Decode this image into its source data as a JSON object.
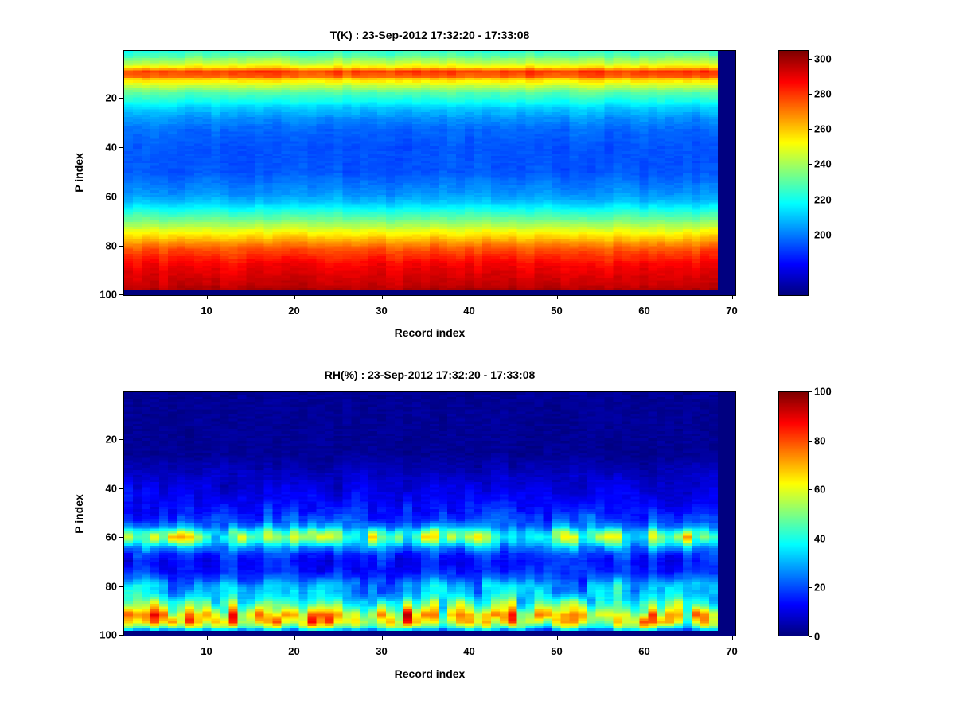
{
  "figure": {
    "background": "#ffffff",
    "colormap_name": "jet",
    "navy_min_color": "#00008f",
    "dark_red_max_color": "#7f0000"
  },
  "chart_data": [
    {
      "type": "heatmap",
      "title": "T(K) : 23-Sep-2012 17:32:20 - 17:33:08",
      "xlabel": "Record index",
      "ylabel": "P index",
      "grid": {
        "cols": 70,
        "rows": 100
      },
      "x_axis": {
        "min": 1,
        "max": 70,
        "ticks": [
          10,
          20,
          30,
          40,
          50,
          60,
          70
        ]
      },
      "y_axis": {
        "min": 1,
        "max": 100,
        "ticks": [
          20,
          40,
          60,
          80,
          100
        ],
        "reversed": true
      },
      "colorbar": {
        "colormap": "jet",
        "min": 165,
        "max": 305,
        "ticks": [
          200,
          220,
          240,
          260,
          280,
          300
        ]
      },
      "profile_p": [
        1,
        3,
        5,
        7,
        9,
        11,
        12,
        14,
        16,
        18,
        21,
        24,
        28,
        33,
        40,
        50,
        55,
        60,
        63,
        66,
        69,
        72,
        75,
        78,
        81,
        84,
        88,
        92,
        96,
        98
      ],
      "profile_value": [
        224,
        232,
        242,
        254,
        280,
        274,
        260,
        249,
        238,
        229,
        221,
        211,
        203,
        197,
        194,
        194,
        199,
        204,
        211,
        221,
        231,
        241,
        253,
        263,
        274,
        281,
        288,
        292,
        295,
        298
      ],
      "noise": {
        "mode": "additive",
        "amp_p": [
          1,
          9,
          14,
          30,
          60,
          80,
          100
        ],
        "amp_v": [
          5,
          9,
          5,
          3.5,
          4,
          5,
          5
        ],
        "cell_amp": 1.5
      },
      "masked": {
        "value": 165,
        "right_cols": 2,
        "bottom_rows": 2
      }
    },
    {
      "type": "heatmap",
      "title": "RH(%) : 23-Sep-2012 17:32:20 - 17:33:08",
      "xlabel": "Record index",
      "ylabel": "P index",
      "grid": {
        "cols": 70,
        "rows": 100
      },
      "x_axis": {
        "min": 1,
        "max": 70,
        "ticks": [
          10,
          20,
          30,
          40,
          50,
          60,
          70
        ]
      },
      "y_axis": {
        "min": 1,
        "max": 100,
        "ticks": [
          20,
          40,
          60,
          80,
          100
        ],
        "reversed": true
      },
      "colorbar": {
        "colormap": "jet",
        "min": 0,
        "max": 100,
        "ticks": [
          0,
          20,
          40,
          60,
          80,
          100
        ]
      },
      "profile_p": [
        1,
        26,
        32,
        38,
        44,
        50,
        54,
        56,
        58,
        60,
        62,
        64,
        67,
        70,
        74,
        77,
        80,
        83,
        86,
        89,
        92,
        95,
        97,
        98
      ],
      "profile_value": [
        2,
        2,
        5,
        8,
        11,
        15,
        20,
        28,
        42,
        48,
        42,
        28,
        18,
        14,
        15,
        20,
        28,
        30,
        36,
        48,
        62,
        60,
        45,
        30
      ],
      "noise": {
        "mode": "multiplicative",
        "factor_min": 0.4,
        "factor_span": 1.25,
        "cell_amp": 1.5
      },
      "masked": {
        "value": 0,
        "right_cols": 2,
        "bottom_rows": 2
      }
    }
  ]
}
